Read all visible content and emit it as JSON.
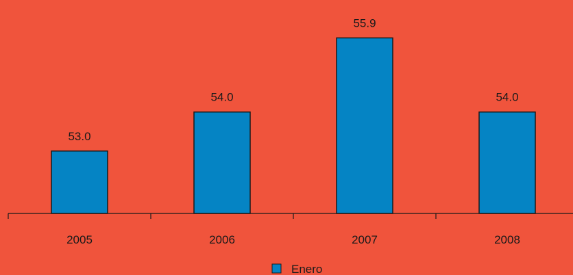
{
  "background_color": "#F0543C",
  "bar_color": "#0584C4",
  "chart_data": {
    "type": "bar",
    "categories": [
      "2005",
      "2006",
      "2007",
      "2008"
    ],
    "series": [
      {
        "name": "Enero",
        "values": [
          53.0,
          54.0,
          55.9,
          54.0
        ]
      }
    ],
    "value_labels": [
      "53.0",
      "54.0",
      "55.9",
      "54.0"
    ],
    "ylim": [
      51.4,
      56.1
    ],
    "grid": false,
    "legend_position": "bottom-center",
    "title": "",
    "xlabel": "",
    "ylabel": ""
  }
}
